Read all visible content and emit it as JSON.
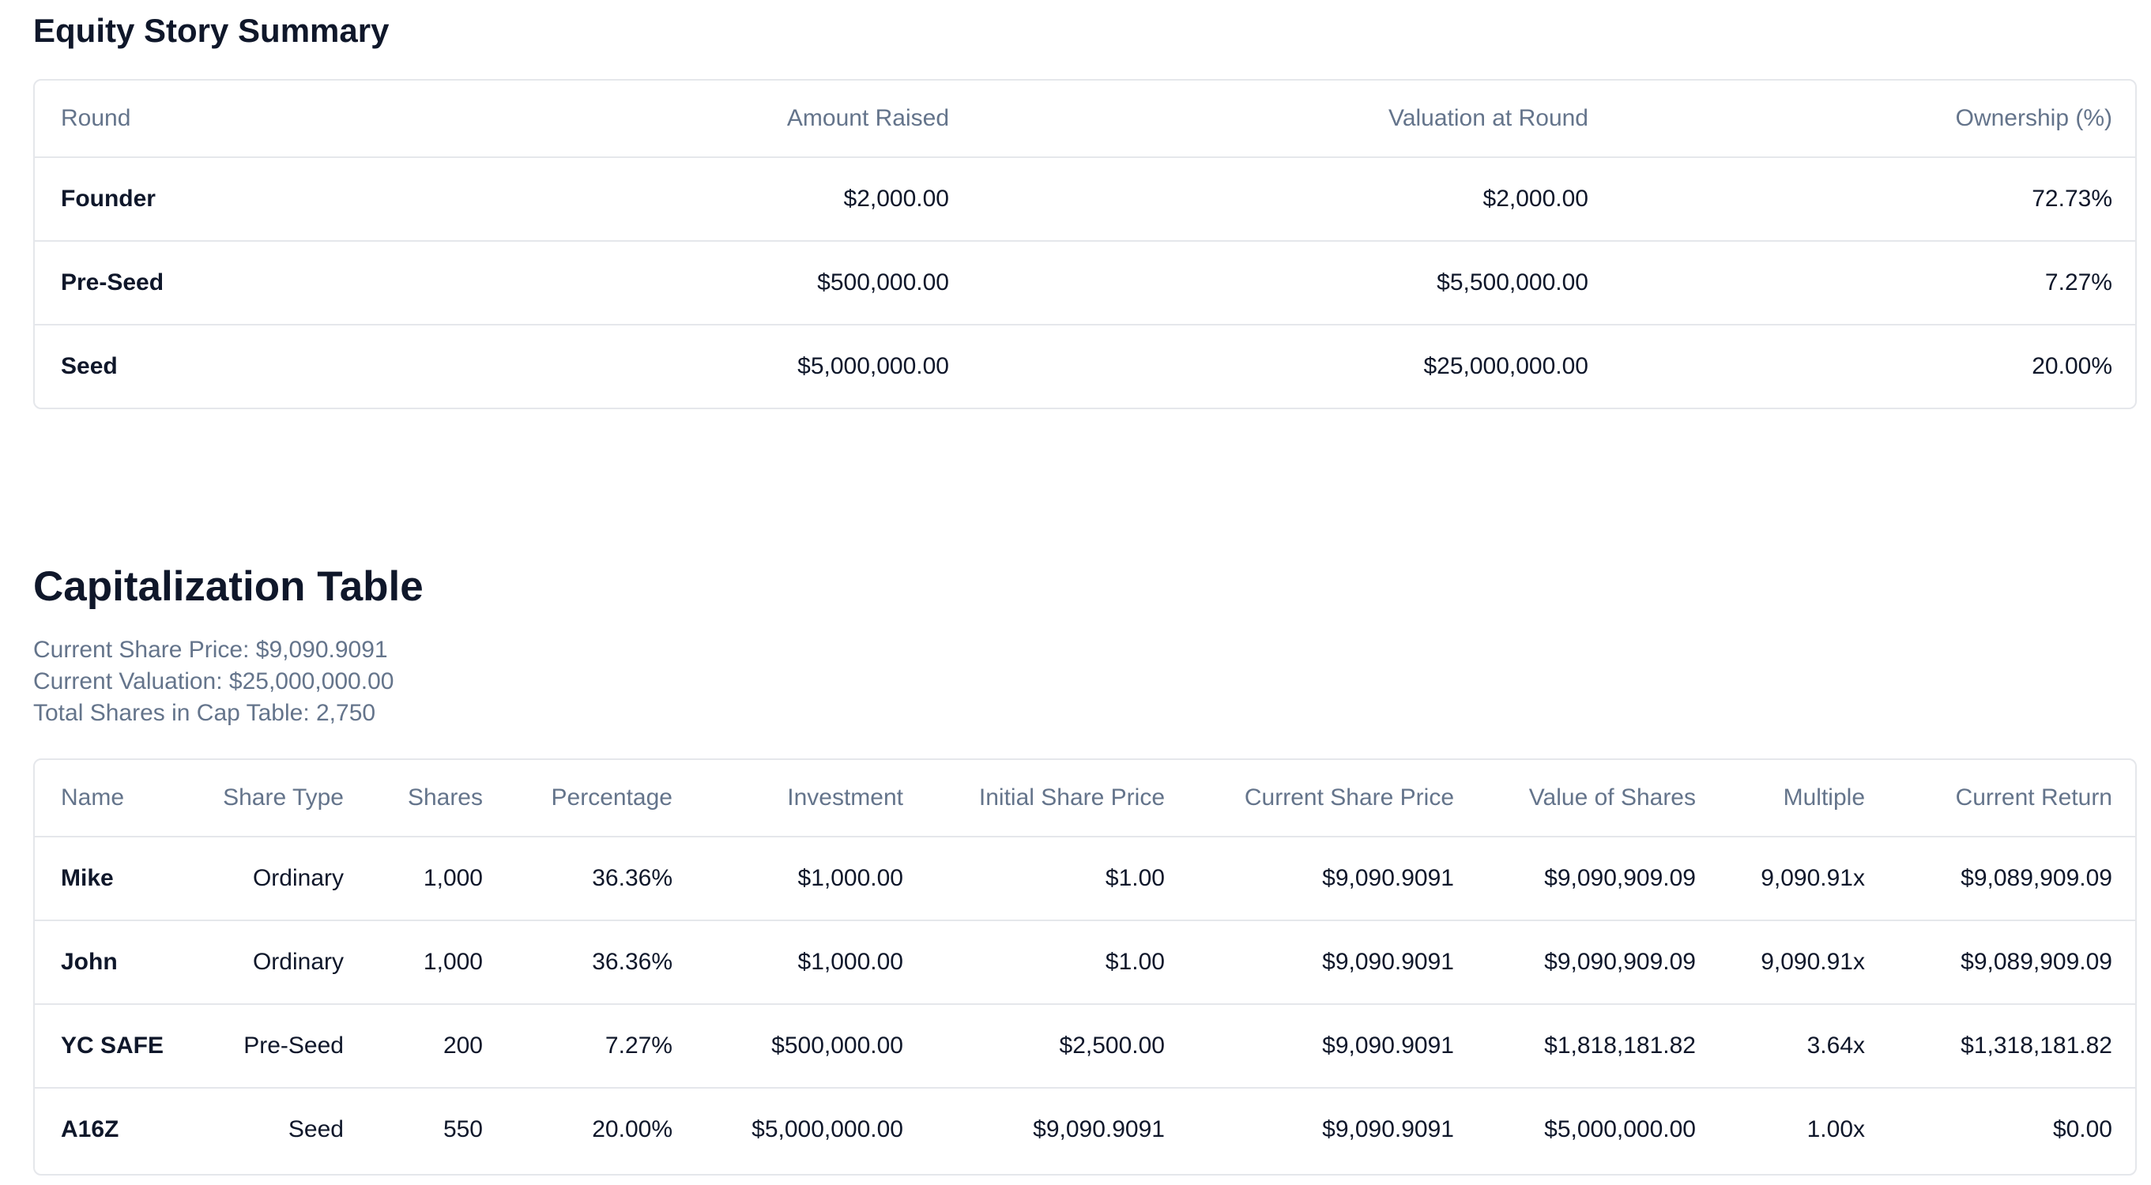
{
  "equity_summary": {
    "title": "Equity Story Summary",
    "columns": [
      "Round",
      "Amount Raised",
      "Valuation at Round",
      "Ownership (%)"
    ],
    "rows": [
      {
        "round": "Founder",
        "amount_raised": "$2,000.00",
        "valuation_at_round": "$2,000.00",
        "ownership": "72.73%"
      },
      {
        "round": "Pre-Seed",
        "amount_raised": "$500,000.00",
        "valuation_at_round": "$5,500,000.00",
        "ownership": "7.27%"
      },
      {
        "round": "Seed",
        "amount_raised": "$5,000,000.00",
        "valuation_at_round": "$25,000,000.00",
        "ownership": "20.00%"
      }
    ]
  },
  "cap_table": {
    "title": "Capitalization Table",
    "summary": {
      "current_share_price": "Current Share Price: $9,090.9091",
      "current_valuation": "Current Valuation: $25,000,000.00",
      "total_shares": "Total Shares in Cap Table: 2,750"
    },
    "columns": [
      "Name",
      "Share Type",
      "Shares",
      "Percentage",
      "Investment",
      "Initial Share Price",
      "Current Share Price",
      "Value of Shares",
      "Multiple",
      "Current Return"
    ],
    "rows": [
      {
        "name": "Mike",
        "share_type": "Ordinary",
        "shares": "1,000",
        "percentage": "36.36%",
        "investment": "$1,000.00",
        "initial_share_price": "$1.00",
        "current_share_price": "$9,090.9091",
        "value_of_shares": "$9,090,909.09",
        "multiple": "9,090.91x",
        "current_return": "$9,089,909.09"
      },
      {
        "name": "John",
        "share_type": "Ordinary",
        "shares": "1,000",
        "percentage": "36.36%",
        "investment": "$1,000.00",
        "initial_share_price": "$1.00",
        "current_share_price": "$9,090.9091",
        "value_of_shares": "$9,090,909.09",
        "multiple": "9,090.91x",
        "current_return": "$9,089,909.09"
      },
      {
        "name": "YC SAFE",
        "share_type": "Pre-Seed",
        "shares": "200",
        "percentage": "7.27%",
        "investment": "$500,000.00",
        "initial_share_price": "$2,500.00",
        "current_share_price": "$9,090.9091",
        "value_of_shares": "$1,818,181.82",
        "multiple": "3.64x",
        "current_return": "$1,318,181.82"
      },
      {
        "name": "A16Z",
        "share_type": "Seed",
        "shares": "550",
        "percentage": "20.00%",
        "investment": "$5,000,000.00",
        "initial_share_price": "$9,090.9091",
        "current_share_price": "$9,090.9091",
        "value_of_shares": "$5,000,000.00",
        "multiple": "1.00x",
        "current_return": "$0.00"
      }
    ]
  },
  "colors": {
    "heading_text": "#0f172a",
    "muted_text": "#64748b",
    "border": "#e5e7eb",
    "background": "#ffffff"
  }
}
